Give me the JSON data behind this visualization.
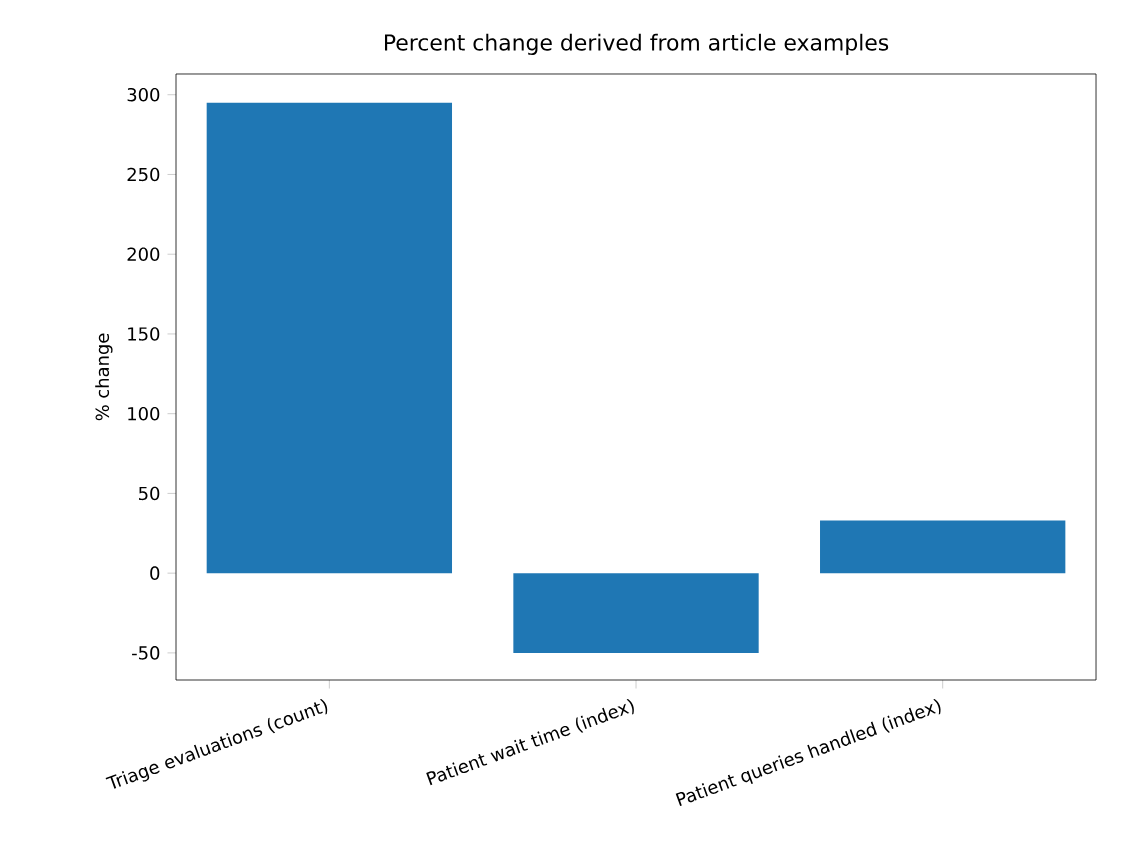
{
  "chart_data": {
    "type": "bar",
    "title": "Percent change derived from article examples",
    "ylabel": "% change",
    "categories": [
      "Triage evaluations (count)",
      "Patient wait time (index)",
      "Patient queries handled (index)"
    ],
    "values": [
      295,
      -50,
      33
    ],
    "color": "#1f77b4",
    "ylim": [
      -67,
      313
    ],
    "yticks": [
      -50,
      0,
      50,
      100,
      150,
      200,
      250,
      300
    ]
  }
}
